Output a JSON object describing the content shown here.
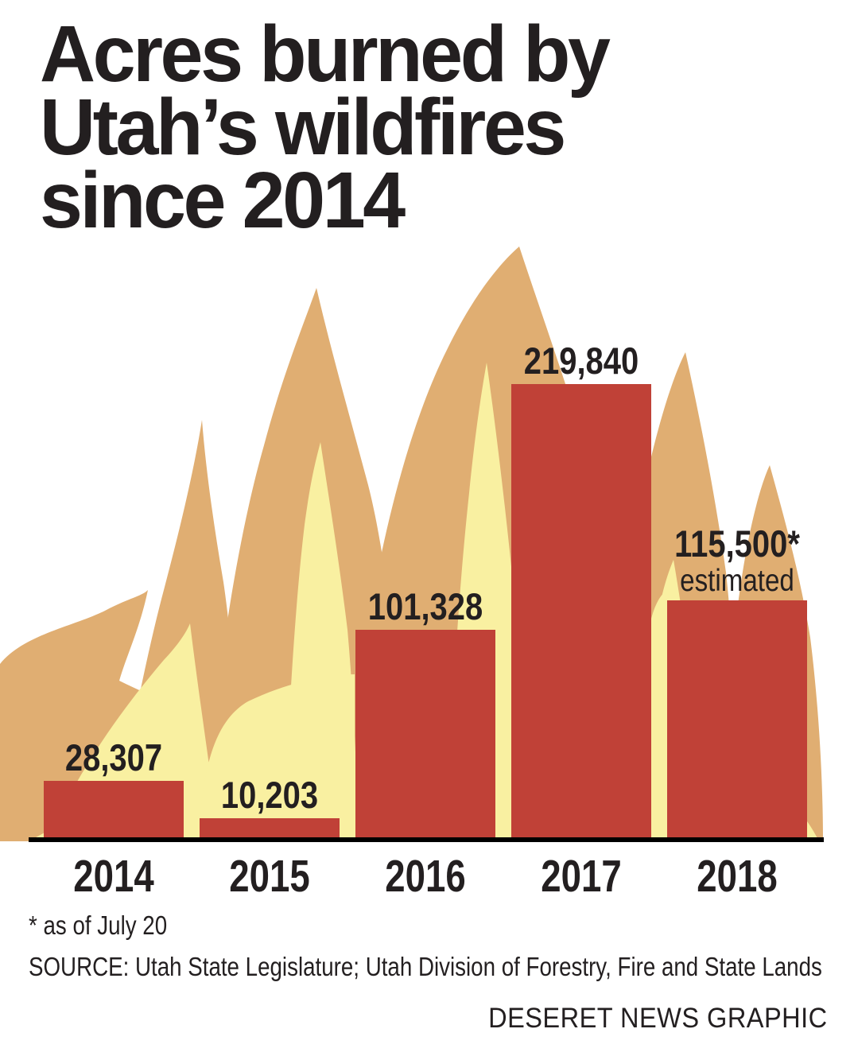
{
  "page": {
    "title_lines": [
      "Acres burned by",
      "Utah’s wildfires",
      "since 2014"
    ],
    "footnote": "* as of July 20",
    "source": "SOURCE: Utah State Legislature; Utah Division of Forestry, Fire and State Lands",
    "credit": "DESERET NEWS GRAPHIC"
  },
  "colors": {
    "background": "#ffffff",
    "bar": "#c04137",
    "flame_outer": "#e0ae72",
    "flame_inner": "#f9f0a1",
    "text": "#231f20",
    "axis": "#000000"
  },
  "chart_data": {
    "type": "bar",
    "title": "Acres burned by Utah's wildfires since 2014",
    "categories": [
      "2014",
      "2015",
      "2016",
      "2017",
      "2018"
    ],
    "values": [
      28307,
      10203,
      101328,
      219840,
      115500
    ],
    "bar_labels": [
      "28,307",
      "10,203",
      "101,328",
      "219,840",
      "115,500*"
    ],
    "bar_sublabels": [
      "",
      "",
      "",
      "",
      "estimated"
    ],
    "xlabel": "",
    "ylabel": "",
    "ylim": [
      0,
      219840
    ],
    "grid": false,
    "legend": "none",
    "bar_color": "#c04137",
    "footnote": "* as of July 20"
  }
}
